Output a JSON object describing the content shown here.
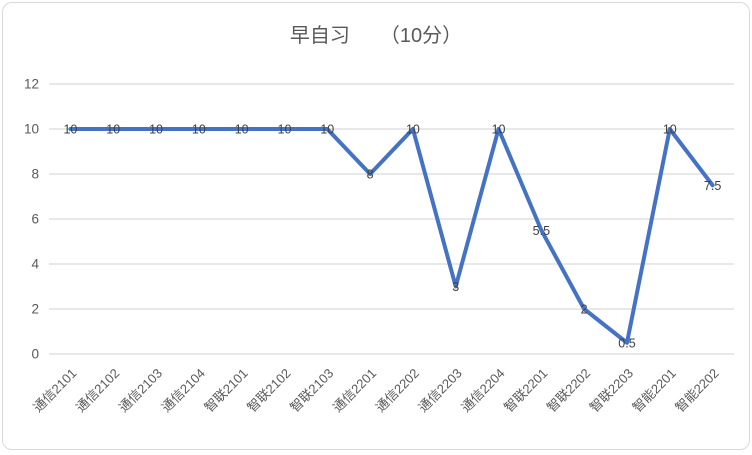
{
  "chart_data": {
    "type": "line",
    "title": "早自习　　（10分）",
    "categories": [
      "通信2101",
      "通信2102",
      "通信2103",
      "通信2104",
      "智联2101",
      "智联2102",
      "智联2103",
      "通信2201",
      "通信2202",
      "通信2203",
      "通信2204",
      "智联2201",
      "智联2202",
      "智联2203",
      "智能2201",
      "智能2202"
    ],
    "values": [
      10,
      10,
      10,
      10,
      10,
      10,
      10,
      8,
      10,
      3,
      10,
      5.5,
      2,
      0.5,
      10,
      7.5
    ],
    "data_labels": [
      "10",
      "10",
      "10",
      "10",
      "10",
      "10",
      "10",
      "8",
      "10",
      "3",
      "10",
      "5.5",
      "2",
      "0.5",
      "10",
      "7.5"
    ],
    "xlabel": "",
    "ylabel": "",
    "ylim": [
      0,
      12
    ],
    "yticks": [
      0,
      2,
      4,
      6,
      8,
      10,
      12
    ],
    "grid": true,
    "legend": "none",
    "series_color": "#4472C4",
    "grid_color": "#d9d9d9",
    "axis_text_color": "#595959",
    "label_color": "#404040",
    "title_color": "#595959",
    "x_label_rotation_deg": -45
  }
}
